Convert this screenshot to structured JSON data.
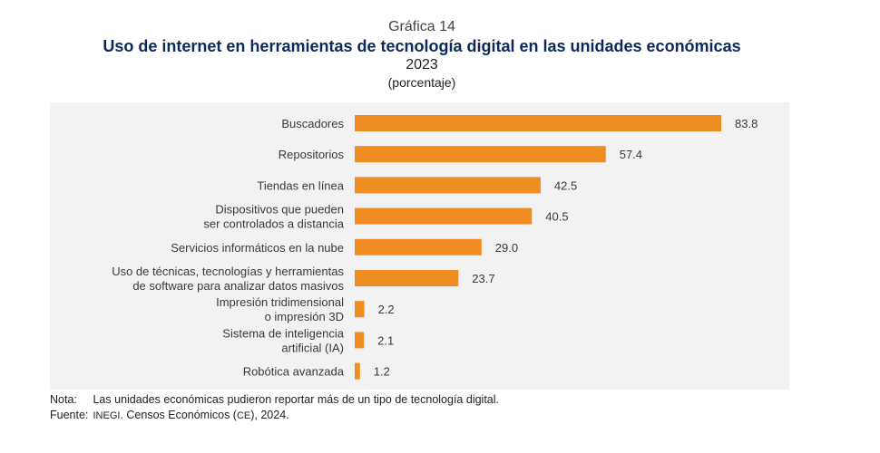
{
  "header": {
    "chart_number": "Gráfica 14",
    "title": "Uso de internet en herramientas de tecnología digital en las unidades económicas",
    "year": "2023",
    "unit": "(porcentaje)"
  },
  "chart_data": {
    "type": "bar",
    "orientation": "horizontal",
    "categories": [
      [
        "Buscadores"
      ],
      [
        "Repositorios"
      ],
      [
        "Tiendas en línea"
      ],
      [
        "Dispositivos que pueden",
        "ser controlados a distancia"
      ],
      [
        "Servicios informáticos en la nube"
      ],
      [
        "Uso de técnicas, tecnologías y herramientas",
        "de software para analizar datos masivos"
      ],
      [
        "Impresión tridimensional",
        "o impresión 3D"
      ],
      [
        "Sistema de inteligencia",
        "artificial (IA)"
      ],
      [
        "Robótica avanzada"
      ]
    ],
    "values": [
      83.8,
      57.4,
      42.5,
      40.5,
      29.0,
      23.7,
      2.2,
      2.1,
      1.2
    ],
    "value_labels": [
      "83.8",
      "57.4",
      "42.5",
      "40.5",
      "29.0",
      "23.7",
      "2.2",
      "2.1",
      "1.2"
    ],
    "bar_color": "#ef8c22",
    "background_color": "#f2f2f2",
    "xlim": [
      0,
      100
    ],
    "grid": false,
    "legend": "none"
  },
  "notes": {
    "nota_key": "Nota:",
    "nota_text": "Las unidades económicas pudieron reportar más de un tipo de tecnología digital.",
    "fuente_key": "Fuente:",
    "fuente_org": "INEGI",
    "fuente_mid": ". Censos Económicos (",
    "fuente_abbr": "CE",
    "fuente_end": "), 2024."
  }
}
